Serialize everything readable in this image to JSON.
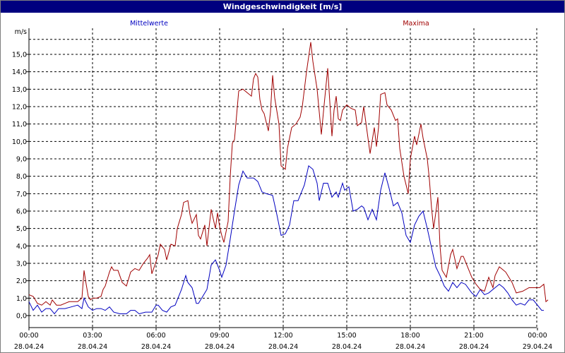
{
  "window": {
    "title": "Windgeschwindigkeit [m/s]"
  },
  "chart_data": {
    "type": "line",
    "title": "Windgeschwindigkeit [m/s]",
    "ylabel": "m/s",
    "xlabel": "",
    "ylim": [
      -0.6,
      16.5
    ],
    "xlim": [
      0,
      24
    ],
    "grid": true,
    "legend_placement": "top",
    "y_ticks": [
      {
        "value": 0.0,
        "label": "0,0"
      },
      {
        "value": 1.0,
        "label": "1,0"
      },
      {
        "value": 2.0,
        "label": "2,0"
      },
      {
        "value": 3.0,
        "label": "3,0"
      },
      {
        "value": 4.0,
        "label": "4,0"
      },
      {
        "value": 5.0,
        "label": "5,0"
      },
      {
        "value": 6.0,
        "label": "6,0"
      },
      {
        "value": 7.0,
        "label": "7,0"
      },
      {
        "value": 8.0,
        "label": "8,0"
      },
      {
        "value": 9.0,
        "label": "9,0"
      },
      {
        "value": 10.0,
        "label": "10,0"
      },
      {
        "value": 11.0,
        "label": "11,0"
      },
      {
        "value": 12.0,
        "label": "12,0"
      },
      {
        "value": 13.0,
        "label": "13,0"
      },
      {
        "value": 14.0,
        "label": "14,0"
      },
      {
        "value": 15.0,
        "label": "15,0"
      }
    ],
    "x_ticks": [
      {
        "value": 0,
        "time": "00:00",
        "date": "28.04.24"
      },
      {
        "value": 3,
        "time": "03:00",
        "date": "28.04.24"
      },
      {
        "value": 6,
        "time": "06:00",
        "date": "28.04.24"
      },
      {
        "value": 9,
        "time": "09:00",
        "date": "28.04.24"
      },
      {
        "value": 12,
        "time": "12:00",
        "date": "28.04.24"
      },
      {
        "value": 15,
        "time": "15:00",
        "date": "28.04.24"
      },
      {
        "value": 18,
        "time": "18:00",
        "date": "28.04.24"
      },
      {
        "value": 21,
        "time": "21:00",
        "date": "28.04.24"
      },
      {
        "value": 24,
        "time": "00:00",
        "date": "29.04.24"
      }
    ],
    "colors": {
      "mittelwerte": "#0000c0",
      "maxima": "#a00000",
      "grid": "#000000"
    },
    "series": [
      {
        "name": "Mittelwerte",
        "color": "#0000c0",
        "points": [
          [
            0.0,
            0.8
          ],
          [
            0.2,
            0.3
          ],
          [
            0.4,
            0.6
          ],
          [
            0.6,
            0.2
          ],
          [
            0.8,
            0.4
          ],
          [
            1.0,
            0.4
          ],
          [
            1.2,
            0.1
          ],
          [
            1.4,
            0.4
          ],
          [
            1.7,
            0.4
          ],
          [
            2.0,
            0.5
          ],
          [
            2.3,
            0.6
          ],
          [
            2.5,
            0.4
          ],
          [
            2.6,
            1.0
          ],
          [
            2.8,
            0.5
          ],
          [
            3.0,
            0.3
          ],
          [
            3.2,
            0.4
          ],
          [
            3.4,
            0.4
          ],
          [
            3.6,
            0.3
          ],
          [
            3.8,
            0.5
          ],
          [
            4.0,
            0.2
          ],
          [
            4.3,
            0.1
          ],
          [
            4.6,
            0.1
          ],
          [
            4.8,
            0.3
          ],
          [
            5.0,
            0.3
          ],
          [
            5.2,
            0.1
          ],
          [
            5.5,
            0.2
          ],
          [
            5.8,
            0.2
          ],
          [
            6.0,
            0.6
          ],
          [
            6.1,
            0.6
          ],
          [
            6.3,
            0.3
          ],
          [
            6.5,
            0.2
          ],
          [
            6.7,
            0.5
          ],
          [
            6.9,
            0.6
          ],
          [
            7.0,
            0.9
          ],
          [
            7.2,
            1.5
          ],
          [
            7.4,
            2.3
          ],
          [
            7.5,
            1.9
          ],
          [
            7.7,
            1.6
          ],
          [
            7.9,
            0.7
          ],
          [
            8.0,
            0.7
          ],
          [
            8.2,
            1.1
          ],
          [
            8.4,
            1.5
          ],
          [
            8.6,
            2.9
          ],
          [
            8.8,
            3.2
          ],
          [
            9.0,
            2.6
          ],
          [
            9.1,
            2.2
          ],
          [
            9.3,
            2.9
          ],
          [
            9.5,
            4.4
          ],
          [
            9.7,
            6.0
          ],
          [
            9.9,
            7.5
          ],
          [
            10.1,
            8.3
          ],
          [
            10.3,
            7.9
          ],
          [
            10.6,
            7.9
          ],
          [
            10.8,
            7.7
          ],
          [
            11.0,
            7.1
          ],
          [
            11.2,
            7.0
          ],
          [
            11.5,
            6.9
          ],
          [
            11.7,
            5.8
          ],
          [
            11.9,
            4.6
          ],
          [
            12.1,
            4.7
          ],
          [
            12.3,
            5.2
          ],
          [
            12.5,
            6.6
          ],
          [
            12.7,
            6.6
          ],
          [
            13.0,
            7.5
          ],
          [
            13.2,
            8.6
          ],
          [
            13.4,
            8.4
          ],
          [
            13.6,
            7.6
          ],
          [
            13.7,
            6.6
          ],
          [
            13.9,
            7.6
          ],
          [
            14.1,
            7.6
          ],
          [
            14.3,
            6.8
          ],
          [
            14.5,
            7.1
          ],
          [
            14.6,
            6.8
          ],
          [
            14.8,
            7.6
          ],
          [
            14.9,
            7.2
          ],
          [
            15.1,
            7.4
          ],
          [
            15.3,
            6.0
          ],
          [
            15.5,
            6.1
          ],
          [
            15.7,
            6.3
          ],
          [
            15.8,
            6.2
          ],
          [
            16.0,
            5.5
          ],
          [
            16.2,
            6.1
          ],
          [
            16.4,
            5.5
          ],
          [
            16.6,
            7.2
          ],
          [
            16.8,
            8.2
          ],
          [
            17.0,
            7.3
          ],
          [
            17.2,
            6.3
          ],
          [
            17.4,
            6.5
          ],
          [
            17.6,
            5.9
          ],
          [
            17.8,
            4.6
          ],
          [
            18.0,
            4.2
          ],
          [
            18.2,
            5.2
          ],
          [
            18.4,
            5.7
          ],
          [
            18.6,
            6.0
          ],
          [
            18.8,
            5.0
          ],
          [
            19.0,
            3.9
          ],
          [
            19.2,
            2.8
          ],
          [
            19.4,
            2.3
          ],
          [
            19.6,
            1.7
          ],
          [
            19.8,
            1.4
          ],
          [
            20.0,
            1.9
          ],
          [
            20.2,
            1.6
          ],
          [
            20.4,
            1.9
          ],
          [
            20.6,
            1.8
          ],
          [
            20.9,
            1.3
          ],
          [
            21.1,
            1.1
          ],
          [
            21.3,
            1.5
          ],
          [
            21.5,
            1.2
          ],
          [
            21.7,
            1.3
          ],
          [
            22.0,
            1.6
          ],
          [
            22.2,
            1.8
          ],
          [
            22.4,
            1.6
          ],
          [
            22.6,
            1.3
          ],
          [
            22.8,
            0.9
          ],
          [
            23.0,
            0.6
          ],
          [
            23.2,
            0.7
          ],
          [
            23.4,
            0.6
          ],
          [
            23.6,
            0.9
          ],
          [
            23.8,
            0.9
          ],
          [
            24.0,
            0.6
          ],
          [
            24.2,
            0.3
          ],
          [
            24.3,
            0.3
          ]
        ]
      },
      {
        "name": "Maxima",
        "color": "#a00000",
        "points": [
          [
            0.0,
            1.2
          ],
          [
            0.2,
            1.1
          ],
          [
            0.4,
            0.7
          ],
          [
            0.6,
            0.6
          ],
          [
            0.8,
            0.8
          ],
          [
            1.0,
            0.6
          ],
          [
            1.1,
            0.9
          ],
          [
            1.3,
            0.6
          ],
          [
            1.5,
            0.6
          ],
          [
            1.7,
            0.7
          ],
          [
            1.9,
            0.8
          ],
          [
            2.1,
            0.8
          ],
          [
            2.3,
            0.8
          ],
          [
            2.5,
            1.0
          ],
          [
            2.6,
            2.6
          ],
          [
            2.7,
            1.8
          ],
          [
            2.8,
            1.1
          ],
          [
            2.9,
            0.9
          ],
          [
            3.0,
            1.0
          ],
          [
            3.2,
            1.0
          ],
          [
            3.4,
            1.1
          ],
          [
            3.5,
            1.5
          ],
          [
            3.6,
            1.7
          ],
          [
            3.8,
            2.5
          ],
          [
            3.9,
            2.8
          ],
          [
            4.0,
            2.6
          ],
          [
            4.2,
            2.6
          ],
          [
            4.4,
            1.9
          ],
          [
            4.6,
            1.7
          ],
          [
            4.8,
            2.5
          ],
          [
            5.0,
            2.7
          ],
          [
            5.2,
            2.6
          ],
          [
            5.4,
            3.0
          ],
          [
            5.6,
            3.3
          ],
          [
            5.7,
            3.5
          ],
          [
            5.8,
            2.4
          ],
          [
            6.0,
            3.1
          ],
          [
            6.1,
            3.5
          ],
          [
            6.2,
            4.1
          ],
          [
            6.4,
            3.8
          ],
          [
            6.5,
            3.2
          ],
          [
            6.7,
            4.1
          ],
          [
            6.9,
            4.0
          ],
          [
            7.0,
            5.0
          ],
          [
            7.2,
            5.8
          ],
          [
            7.3,
            6.5
          ],
          [
            7.5,
            6.6
          ],
          [
            7.6,
            5.8
          ],
          [
            7.7,
            5.3
          ],
          [
            7.9,
            5.8
          ],
          [
            8.0,
            4.6
          ],
          [
            8.1,
            4.4
          ],
          [
            8.3,
            5.2
          ],
          [
            8.4,
            4.0
          ],
          [
            8.6,
            6.1
          ],
          [
            8.8,
            5.0
          ],
          [
            8.9,
            5.9
          ],
          [
            9.0,
            5.1
          ],
          [
            9.1,
            4.6
          ],
          [
            9.2,
            4.2
          ],
          [
            9.4,
            5.4
          ],
          [
            9.5,
            8.0
          ],
          [
            9.6,
            9.9
          ],
          [
            9.7,
            10.1
          ],
          [
            9.9,
            12.9
          ],
          [
            10.1,
            13.0
          ],
          [
            10.3,
            12.8
          ],
          [
            10.5,
            12.6
          ],
          [
            10.6,
            13.6
          ],
          [
            10.7,
            13.9
          ],
          [
            10.8,
            13.7
          ],
          [
            10.9,
            12.4
          ],
          [
            11.0,
            11.8
          ],
          [
            11.1,
            11.6
          ],
          [
            11.3,
            10.6
          ],
          [
            11.4,
            11.7
          ],
          [
            11.5,
            13.8
          ],
          [
            11.6,
            12.5
          ],
          [
            11.8,
            11.0
          ],
          [
            11.9,
            8.6
          ],
          [
            12.1,
            8.4
          ],
          [
            12.2,
            9.6
          ],
          [
            12.4,
            10.8
          ],
          [
            12.6,
            11.0
          ],
          [
            12.8,
            11.4
          ],
          [
            12.9,
            12.0
          ],
          [
            13.0,
            13.0
          ],
          [
            13.1,
            14.0
          ],
          [
            13.3,
            15.7
          ],
          [
            13.4,
            14.6
          ],
          [
            13.6,
            13.0
          ],
          [
            13.8,
            10.4
          ],
          [
            13.9,
            11.7
          ],
          [
            14.1,
            14.2
          ],
          [
            14.3,
            10.3
          ],
          [
            14.4,
            11.8
          ],
          [
            14.5,
            12.6
          ],
          [
            14.6,
            11.3
          ],
          [
            14.7,
            11.2
          ],
          [
            14.8,
            11.8
          ],
          [
            15.0,
            12.1
          ],
          [
            15.2,
            11.9
          ],
          [
            15.4,
            11.8
          ],
          [
            15.5,
            10.9
          ],
          [
            15.7,
            11.1
          ],
          [
            15.8,
            12.0
          ],
          [
            16.0,
            10.2
          ],
          [
            16.1,
            9.3
          ],
          [
            16.3,
            10.8
          ],
          [
            16.4,
            9.7
          ],
          [
            16.5,
            10.8
          ],
          [
            16.6,
            12.7
          ],
          [
            16.8,
            12.8
          ],
          [
            16.9,
            12.1
          ],
          [
            17.1,
            11.8
          ],
          [
            17.3,
            11.2
          ],
          [
            17.4,
            11.3
          ],
          [
            17.5,
            9.6
          ],
          [
            17.7,
            8.0
          ],
          [
            17.9,
            7.0
          ],
          [
            18.0,
            9.0
          ],
          [
            18.2,
            10.3
          ],
          [
            18.3,
            9.8
          ],
          [
            18.5,
            11.0
          ],
          [
            18.6,
            10.2
          ],
          [
            18.8,
            9.0
          ],
          [
            18.9,
            7.8
          ],
          [
            19.0,
            6.2
          ],
          [
            19.1,
            5.0
          ],
          [
            19.3,
            6.8
          ],
          [
            19.4,
            4.0
          ],
          [
            19.5,
            2.6
          ],
          [
            19.7,
            2.2
          ],
          [
            19.9,
            3.5
          ],
          [
            20.0,
            3.8
          ],
          [
            20.2,
            2.7
          ],
          [
            20.4,
            3.4
          ],
          [
            20.5,
            3.4
          ],
          [
            20.7,
            2.8
          ],
          [
            20.9,
            2.2
          ],
          [
            21.1,
            1.8
          ],
          [
            21.3,
            1.5
          ],
          [
            21.5,
            1.4
          ],
          [
            21.7,
            2.2
          ],
          [
            21.9,
            1.6
          ],
          [
            22.0,
            2.3
          ],
          [
            22.2,
            2.8
          ],
          [
            22.5,
            2.5
          ],
          [
            22.8,
            1.9
          ],
          [
            23.0,
            1.3
          ],
          [
            23.3,
            1.4
          ],
          [
            23.6,
            1.6
          ],
          [
            23.9,
            1.6
          ],
          [
            24.1,
            1.6
          ],
          [
            24.3,
            1.8
          ],
          [
            24.4,
            0.8
          ],
          [
            24.5,
            0.9
          ]
        ]
      }
    ]
  }
}
